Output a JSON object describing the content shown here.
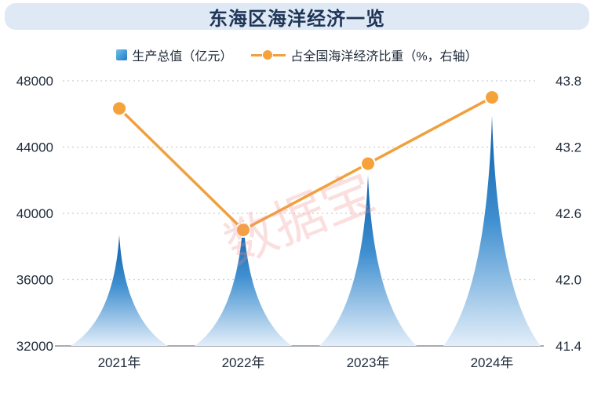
{
  "title": "东海区海洋经济一览",
  "watermark": "数据宝",
  "colors": {
    "bar_top": "#1a73b8",
    "bar_bottom": "#d8e7f6",
    "line": "#f0a03c",
    "title_bg": "#dfe9f6",
    "grid": "#c8ccd2"
  },
  "legend": {
    "bar_label": "生产总值（亿元）",
    "line_label": "占全国海洋经济比重（%，右轴）"
  },
  "chart_data": {
    "type": "bar",
    "categories": [
      "2021年",
      "2022年",
      "2023年",
      "2024年"
    ],
    "series": [
      {
        "name": "生产总值（亿元）",
        "type": "bar",
        "axis": "left",
        "values": [
          38700,
          39700,
          42300,
          45900
        ]
      },
      {
        "name": "占全国海洋经济比重（%，右轴）",
        "type": "line",
        "axis": "right",
        "values": [
          43.55,
          42.45,
          43.05,
          43.65
        ]
      }
    ],
    "y_left": {
      "ticks": [
        "48000",
        "44000",
        "40000",
        "36000",
        "32000"
      ],
      "range": [
        32000,
        48000
      ]
    },
    "y_right": {
      "ticks": [
        "43.8",
        "43.2",
        "42.6",
        "42.0",
        "41.4"
      ],
      "range": [
        41.4,
        43.8
      ]
    },
    "grid": true,
    "legend_position": "top"
  }
}
